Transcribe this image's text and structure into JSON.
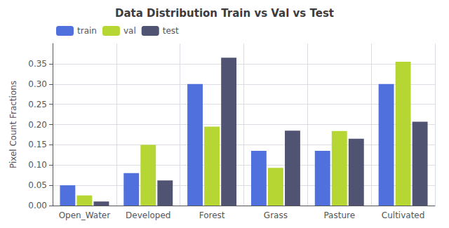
{
  "chart_data": {
    "type": "bar",
    "title": "Data Distribution Train vs Val vs Test",
    "ylabel": "Pixel Count Fractions",
    "categories": [
      "Open_Water",
      "Developed",
      "Forest",
      "Grass",
      "Pasture",
      "Cultivated"
    ],
    "series": [
      {
        "name": "train",
        "values": [
          0.05,
          0.08,
          0.3,
          0.135,
          0.135,
          0.3
        ]
      },
      {
        "name": "val",
        "values": [
          0.025,
          0.15,
          0.195,
          0.093,
          0.184,
          0.355
        ]
      },
      {
        "name": "test",
        "values": [
          0.01,
          0.062,
          0.365,
          0.185,
          0.165,
          0.207
        ]
      }
    ],
    "ylim": [
      0.0,
      0.4
    ],
    "yticks": [
      {
        "value": 0.0,
        "label": "0.00"
      },
      0.05,
      {
        "value": 0.1,
        "label": "0.10"
      },
      0.15,
      {
        "value": 0.2,
        "label": "0.20"
      },
      0.25,
      {
        "value": 0.3,
        "label": "0.30"
      },
      0.35
    ],
    "legend": "upper left",
    "grid": true
  }
}
